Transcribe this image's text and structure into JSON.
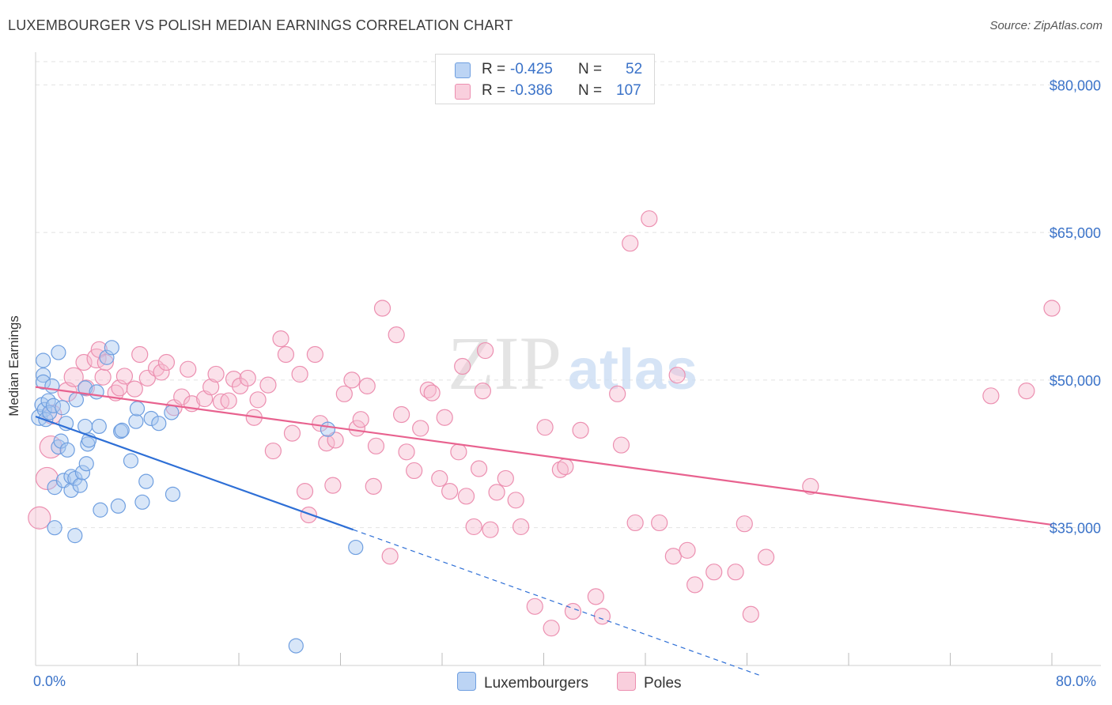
{
  "title": "LUXEMBOURGER VS POLISH MEDIAN EARNINGS CORRELATION CHART",
  "source": "Source: ZipAtlas.com",
  "watermark": {
    "zip": "ZIP",
    "atlas": "atlas"
  },
  "colors": {
    "blue_fill": "#a9c8f0",
    "blue_stroke": "#6f9fe0",
    "blue_line": "#2e6fd6",
    "pink_fill": "#f6bdd0",
    "pink_stroke": "#ec8fb0",
    "pink_line": "#e8628f",
    "axis_text": "#3a72c8",
    "grid": "#e2e2e2"
  },
  "legend": {
    "rows": [
      {
        "r_label": "R = ",
        "r_value": "-0.425",
        "n_label": "N = ",
        "n_value": "52",
        "color": "blue"
      },
      {
        "r_label": "R = ",
        "r_value": "-0.386",
        "n_label": "N = ",
        "n_value": "107",
        "color": "pink"
      }
    ]
  },
  "bottom_legend": [
    {
      "label": "Luxembourgers",
      "color": "blue"
    },
    {
      "label": "Poles",
      "color": "pink"
    }
  ],
  "chart_data": {
    "type": "scatter",
    "title": "LUXEMBOURGER VS POLISH MEDIAN EARNINGS CORRELATION CHART",
    "xlabel": "",
    "ylabel": "Median Earnings",
    "xlim": [
      0,
      80
    ],
    "ylim": [
      21000,
      83000
    ],
    "x_tick_labels": [
      {
        "value": 0,
        "label": "0.0%"
      },
      {
        "value": 80,
        "label": "80.0%"
      }
    ],
    "y_tick_labels": [
      {
        "value": 80000,
        "label": "$80,000"
      },
      {
        "value": 65000,
        "label": "$65,000"
      },
      {
        "value": 50000,
        "label": "$50,000"
      },
      {
        "value": 35000,
        "label": "$35,000"
      }
    ],
    "x_minor_ticks": [
      8,
      16,
      24,
      32,
      40,
      48,
      56,
      64,
      72,
      80
    ],
    "series": [
      {
        "name": "Luxembourgers",
        "color": "blue",
        "r": -0.425,
        "n": 52,
        "trend": {
          "x1": 0,
          "y1": 46300,
          "x2": 25,
          "y2": 34800,
          "dash_to_x": 57,
          "dash_to_y": 20000
        },
        "points": [
          [
            0.3,
            46200,
            10
          ],
          [
            0.5,
            47500,
            9
          ],
          [
            0.6,
            50500,
            9
          ],
          [
            0.6,
            49800,
            9
          ],
          [
            0.6,
            52000,
            9
          ],
          [
            0.7,
            47000,
            9
          ],
          [
            0.8,
            46000,
            9
          ],
          [
            1.0,
            47900,
            9
          ],
          [
            1.1,
            46700,
            9
          ],
          [
            1.3,
            49400,
            9
          ],
          [
            1.4,
            47400,
            9
          ],
          [
            1.5,
            35000,
            9
          ],
          [
            1.5,
            39100,
            9
          ],
          [
            1.8,
            52800,
            9
          ],
          [
            1.8,
            43200,
            9
          ],
          [
            2.0,
            43800,
            9
          ],
          [
            2.1,
            47200,
            9
          ],
          [
            2.2,
            39800,
            9
          ],
          [
            2.4,
            45600,
            9
          ],
          [
            2.5,
            42900,
            9
          ],
          [
            2.8,
            40200,
            9
          ],
          [
            2.8,
            38800,
            9
          ],
          [
            3.1,
            40000,
            9
          ],
          [
            3.1,
            34200,
            9
          ],
          [
            3.2,
            48000,
            9
          ],
          [
            3.5,
            39300,
            9
          ],
          [
            3.7,
            40600,
            9
          ],
          [
            3.9,
            45300,
            9
          ],
          [
            3.9,
            49200,
            9
          ],
          [
            4.0,
            41500,
            9
          ],
          [
            4.1,
            43500,
            9
          ],
          [
            4.2,
            43900,
            9
          ],
          [
            4.8,
            48800,
            9
          ],
          [
            5.0,
            45300,
            9
          ],
          [
            5.1,
            36800,
            9
          ],
          [
            5.6,
            52300,
            9
          ],
          [
            6.0,
            53300,
            9
          ],
          [
            6.5,
            37200,
            9
          ],
          [
            6.7,
            44800,
            9
          ],
          [
            6.8,
            44900,
            9
          ],
          [
            7.5,
            41800,
            9
          ],
          [
            7.9,
            45800,
            9
          ],
          [
            8.0,
            47100,
            9
          ],
          [
            8.4,
            37600,
            9
          ],
          [
            8.7,
            39700,
            9
          ],
          [
            9.1,
            46100,
            9
          ],
          [
            9.7,
            45600,
            9
          ],
          [
            10.7,
            46700,
            9
          ],
          [
            10.8,
            38400,
            9
          ],
          [
            23.0,
            45000,
            9
          ],
          [
            25.2,
            33000,
            9
          ],
          [
            20.5,
            23000,
            9
          ]
        ]
      },
      {
        "name": "Poles",
        "color": "pink",
        "r": -0.386,
        "n": 107,
        "trend": {
          "x1": 0,
          "y1": 49300,
          "x2": 80,
          "y2": 35300
        },
        "points": [
          [
            0.3,
            36000,
            14
          ],
          [
            0.9,
            40000,
            14
          ],
          [
            1.2,
            43200,
            14
          ],
          [
            1.3,
            46500,
            12
          ],
          [
            2.5,
            48800,
            12
          ],
          [
            3.0,
            50300,
            12
          ],
          [
            3.8,
            51800,
            10
          ],
          [
            4.8,
            52200,
            12
          ],
          [
            5.0,
            53100,
            10
          ],
          [
            4.0,
            49200,
            10
          ],
          [
            5.3,
            50300,
            10
          ],
          [
            5.5,
            51800,
            10
          ],
          [
            6.3,
            48700,
            10
          ],
          [
            6.6,
            49200,
            10
          ],
          [
            7.0,
            50400,
            10
          ],
          [
            7.8,
            49100,
            10
          ],
          [
            8.2,
            52600,
            10
          ],
          [
            8.8,
            50200,
            10
          ],
          [
            9.5,
            51200,
            10
          ],
          [
            9.9,
            50800,
            10
          ],
          [
            10.3,
            51800,
            10
          ],
          [
            10.9,
            47200,
            10
          ],
          [
            11.5,
            48300,
            10
          ],
          [
            12.0,
            51100,
            10
          ],
          [
            12.3,
            47600,
            10
          ],
          [
            13.3,
            48100,
            10
          ],
          [
            13.8,
            49300,
            10
          ],
          [
            14.2,
            50600,
            10
          ],
          [
            14.6,
            47800,
            10
          ],
          [
            15.2,
            47900,
            10
          ],
          [
            15.6,
            50100,
            10
          ],
          [
            16.1,
            49400,
            10
          ],
          [
            16.7,
            50200,
            10
          ],
          [
            17.2,
            46200,
            10
          ],
          [
            17.5,
            48000,
            10
          ],
          [
            18.3,
            49500,
            10
          ],
          [
            18.7,
            42800,
            10
          ],
          [
            19.3,
            54200,
            10
          ],
          [
            19.7,
            52600,
            10
          ],
          [
            20.2,
            44600,
            10
          ],
          [
            20.8,
            50600,
            10
          ],
          [
            21.2,
            38700,
            10
          ],
          [
            21.5,
            36300,
            10
          ],
          [
            22.0,
            52600,
            10
          ],
          [
            22.4,
            45600,
            10
          ],
          [
            22.9,
            43600,
            10
          ],
          [
            23.4,
            39300,
            10
          ],
          [
            23.6,
            43900,
            10
          ],
          [
            24.3,
            48600,
            10
          ],
          [
            24.9,
            50000,
            10
          ],
          [
            25.3,
            45100,
            10
          ],
          [
            25.6,
            46000,
            10
          ],
          [
            26.1,
            49400,
            10
          ],
          [
            26.6,
            39200,
            10
          ],
          [
            26.8,
            43300,
            10
          ],
          [
            27.3,
            57300,
            10
          ],
          [
            27.9,
            32100,
            10
          ],
          [
            28.4,
            54600,
            10
          ],
          [
            28.8,
            46500,
            10
          ],
          [
            29.2,
            42700,
            10
          ],
          [
            29.8,
            40800,
            10
          ],
          [
            30.3,
            45100,
            10
          ],
          [
            30.9,
            49000,
            10
          ],
          [
            31.2,
            48700,
            10
          ],
          [
            31.8,
            40000,
            10
          ],
          [
            32.2,
            46200,
            10
          ],
          [
            32.6,
            38700,
            10
          ],
          [
            33.3,
            42700,
            10
          ],
          [
            33.6,
            51400,
            10
          ],
          [
            33.9,
            38200,
            10
          ],
          [
            34.5,
            35100,
            10
          ],
          [
            34.9,
            41000,
            10
          ],
          [
            35.4,
            53000,
            10
          ],
          [
            35.2,
            48900,
            10
          ],
          [
            35.8,
            34800,
            10
          ],
          [
            36.3,
            38600,
            10
          ],
          [
            37.0,
            40000,
            10
          ],
          [
            37.8,
            37800,
            10
          ],
          [
            38.2,
            35100,
            10
          ],
          [
            39.3,
            27000,
            10
          ],
          [
            40.1,
            45200,
            10
          ],
          [
            40.6,
            24800,
            10
          ],
          [
            41.3,
            40900,
            10
          ],
          [
            41.7,
            41200,
            10
          ],
          [
            42.3,
            26500,
            10
          ],
          [
            42.9,
            44900,
            10
          ],
          [
            44.1,
            28000,
            10
          ],
          [
            44.6,
            26000,
            10
          ],
          [
            45.8,
            48600,
            10
          ],
          [
            46.1,
            43400,
            10
          ],
          [
            46.8,
            63900,
            10
          ],
          [
            47.2,
            35500,
            10
          ],
          [
            48.3,
            66400,
            10
          ],
          [
            49.1,
            35500,
            10
          ],
          [
            50.2,
            32100,
            10
          ],
          [
            50.5,
            50500,
            10
          ],
          [
            51.3,
            32700,
            10
          ],
          [
            51.9,
            29200,
            10
          ],
          [
            53.4,
            30500,
            10
          ],
          [
            55.1,
            30500,
            10
          ],
          [
            55.8,
            35400,
            10
          ],
          [
            56.3,
            26200,
            10
          ],
          [
            57.5,
            32000,
            10
          ],
          [
            61.0,
            39200,
            10
          ],
          [
            75.2,
            48400,
            10
          ],
          [
            78.0,
            48900,
            10
          ],
          [
            80.0,
            57300,
            10
          ]
        ]
      }
    ]
  }
}
